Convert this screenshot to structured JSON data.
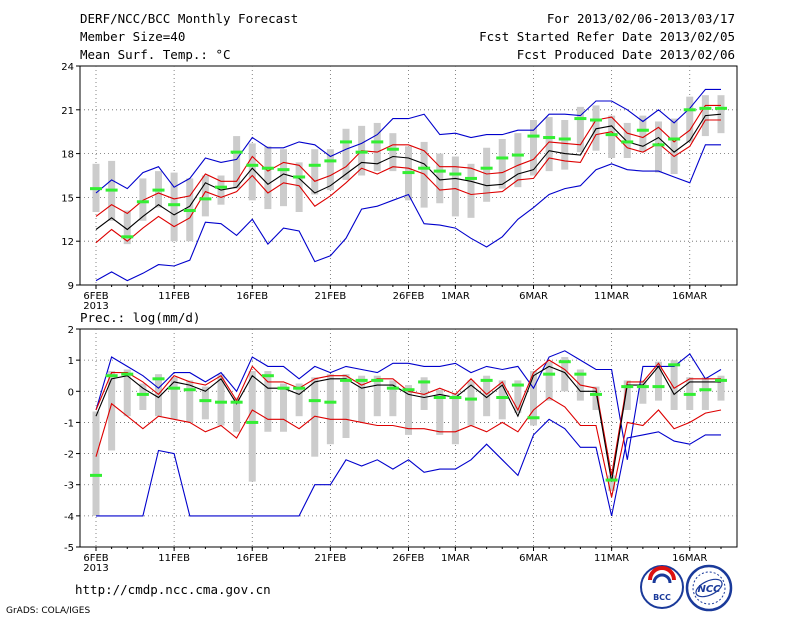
{
  "header": {
    "title": "DERF/NCC/BCC Monthly Forecast",
    "member_size": "Member Size=40",
    "variable": "Mean Surf. Temp.: °C",
    "period": "For 2013/02/06-2013/03/17",
    "start_ref": "Fcst Started Refer Date 2013/02/05",
    "produced": "Fcst Produced Date 2013/02/06"
  },
  "footer": {
    "url": "http://cmdp.ncc.cma.gov.cn",
    "credit": "GrADS: COLA/IGES",
    "logo_bcc": "BCC",
    "logo_ncc": "NCC"
  },
  "colors": {
    "envelope": "#0000cc",
    "spread": "#dd0000",
    "mean": "#000000",
    "median": "#33ee33",
    "box": "#cccccc",
    "grid": "#666666"
  },
  "chart_data": [
    {
      "type": "line",
      "title": "Mean Surf. Temp.: °C",
      "ylim": [
        9,
        24
      ],
      "yticks": [
        9,
        12,
        15,
        18,
        21,
        24
      ],
      "xlim": [
        0,
        40
      ],
      "xticks": [
        {
          "x": 0,
          "label": "6FEB",
          "sub": "2013"
        },
        {
          "x": 5,
          "label": "11FEB"
        },
        {
          "x": 10,
          "label": "16FEB"
        },
        {
          "x": 15,
          "label": "21FEB"
        },
        {
          "x": 20,
          "label": "26FEB"
        },
        {
          "x": 23,
          "label": "1MAR"
        },
        {
          "x": 28,
          "label": "6MAR"
        },
        {
          "x": 33,
          "label": "11MAR"
        },
        {
          "x": 38,
          "label": "16MAR"
        }
      ],
      "grid": true,
      "series": [
        {
          "name": "max",
          "values": [
            15.3,
            16.2,
            15.6,
            16.7,
            17.1,
            15.7,
            16.3,
            17.7,
            17.4,
            17.6,
            19.1,
            18.4,
            18.4,
            18.8,
            18.6,
            17.8,
            18.3,
            18.7,
            19.3,
            20.4,
            20.4,
            20.7,
            19.3,
            19.4,
            19.1,
            19.3,
            19.3,
            19.6,
            19.6,
            20.7,
            20.7,
            20.6,
            21.6,
            21.6,
            21.0,
            20.2,
            21.0,
            20.1,
            21.1,
            22.4,
            22.4
          ]
        },
        {
          "name": "p_hi",
          "values": [
            13.7,
            14.5,
            13.9,
            14.8,
            15.3,
            14.9,
            15.1,
            16.6,
            16.1,
            16.1,
            17.8,
            16.8,
            17.4,
            17.2,
            16.1,
            16.5,
            17.1,
            18.2,
            18.1,
            18.6,
            18.6,
            18.2,
            17.1,
            17.1,
            17.0,
            16.6,
            16.7,
            17.2,
            17.6,
            18.8,
            18.7,
            18.6,
            20.3,
            20.5,
            19.4,
            19.1,
            19.8,
            18.8,
            19.6,
            21.3,
            21.3
          ]
        },
        {
          "name": "mean",
          "values": [
            12.8,
            13.6,
            12.8,
            13.7,
            14.5,
            13.8,
            14.4,
            16.0,
            15.5,
            15.7,
            17.0,
            15.9,
            16.6,
            16.3,
            15.3,
            15.8,
            16.6,
            17.4,
            17.3,
            17.8,
            17.7,
            17.3,
            16.2,
            16.3,
            16.1,
            15.8,
            15.9,
            16.6,
            16.9,
            18.2,
            18.0,
            17.9,
            19.7,
            19.9,
            18.8,
            18.5,
            19.1,
            18.1,
            18.9,
            20.6,
            20.7
          ]
        },
        {
          "name": "p_lo",
          "values": [
            11.9,
            12.8,
            12.0,
            12.9,
            13.7,
            13.0,
            13.6,
            15.4,
            15.0,
            15.4,
            16.5,
            15.3,
            16.0,
            15.8,
            14.4,
            15.1,
            16.0,
            17.0,
            16.6,
            17.1,
            17.0,
            16.6,
            15.5,
            15.6,
            15.2,
            15.3,
            15.4,
            16.2,
            16.3,
            17.7,
            17.5,
            17.4,
            19.3,
            19.5,
            18.4,
            18.1,
            18.7,
            17.8,
            18.5,
            20.3,
            20.3
          ]
        },
        {
          "name": "min",
          "values": [
            9.3,
            9.9,
            9.3,
            9.8,
            10.4,
            10.3,
            10.7,
            13.3,
            13.2,
            12.4,
            13.5,
            11.8,
            12.9,
            12.7,
            10.6,
            11.0,
            12.2,
            14.2,
            14.4,
            14.8,
            15.2,
            13.2,
            13.1,
            12.9,
            12.2,
            11.6,
            12.3,
            13.5,
            14.3,
            15.2,
            15.6,
            15.8,
            16.9,
            17.3,
            16.9,
            16.8,
            16.8,
            16.4,
            16.0,
            18.6,
            18.6
          ]
        }
      ],
      "median": [
        15.6,
        15.5,
        12.3,
        14.7,
        15.5,
        14.5,
        14.1,
        14.9,
        15.7,
        18.1,
        17.2,
        17.0,
        16.9,
        16.4,
        17.2,
        17.5,
        18.8,
        18.1,
        18.8,
        18.3,
        16.7,
        17.0,
        16.8,
        16.6,
        16.3,
        17.0,
        17.7,
        17.9,
        19.2,
        19.1,
        19.0,
        20.4,
        20.3,
        19.3,
        18.8,
        19.6,
        18.6,
        19.0,
        21.0,
        21.1,
        21.1
      ],
      "box_low": [
        14.0,
        13.4,
        11.8,
        13.4,
        14.3,
        12.0,
        12.0,
        13.7,
        14.5,
        15.6,
        14.8,
        14.2,
        14.4,
        14.0,
        15.2,
        15.5,
        16.2,
        16.5,
        16.8,
        16.8,
        14.8,
        14.3,
        14.6,
        13.7,
        13.6,
        14.7,
        15.6,
        15.7,
        16.5,
        16.8,
        16.9,
        18.1,
        18.2,
        17.7,
        17.7,
        18.1,
        16.7,
        16.6,
        18.8,
        19.2,
        19.4
      ],
      "box_high": [
        17.3,
        17.5,
        14.1,
        16.3,
        16.8,
        16.7,
        16.3,
        16.5,
        16.5,
        19.2,
        18.7,
        18.5,
        18.3,
        17.4,
        18.3,
        18.3,
        19.7,
        19.9,
        20.1,
        19.4,
        18.5,
        18.8,
        18.0,
        17.8,
        17.3,
        18.4,
        19.0,
        19.4,
        20.3,
        20.5,
        20.3,
        21.2,
        21.3,
        20.6,
        20.1,
        20.6,
        20.2,
        20.4,
        21.9,
        22.0,
        22.0
      ]
    },
    {
      "type": "line",
      "title": "Prec.: log(mm/d)",
      "ylim": [
        -5,
        2
      ],
      "yticks": [
        -5,
        -4,
        -3,
        -2,
        -1,
        0,
        1,
        2
      ],
      "xlim": [
        0,
        40
      ],
      "xticks": [
        {
          "x": 0,
          "label": "6FEB",
          "sub": "2013"
        },
        {
          "x": 5,
          "label": "11FEB"
        },
        {
          "x": 10,
          "label": "16FEB"
        },
        {
          "x": 15,
          "label": "21FEB"
        },
        {
          "x": 20,
          "label": "26FEB"
        },
        {
          "x": 23,
          "label": "1MAR"
        },
        {
          "x": 28,
          "label": "6MAR"
        },
        {
          "x": 33,
          "label": "11MAR"
        },
        {
          "x": 38,
          "label": "16MAR"
        }
      ],
      "grid": true,
      "series": [
        {
          "name": "max",
          "values": [
            -0.6,
            1.1,
            0.8,
            0.5,
            0.1,
            0.6,
            0.6,
            0.3,
            0.6,
            0.0,
            1.1,
            0.8,
            0.8,
            0.4,
            0.8,
            0.6,
            0.8,
            0.7,
            0.6,
            0.9,
            0.9,
            0.8,
            0.8,
            0.9,
            0.6,
            0.8,
            0.7,
            0.8,
            0.1,
            1.1,
            1.3,
            1.0,
            0.7,
            0.7,
            -2.2,
            0.8,
            0.8,
            0.8,
            1.2,
            0.4,
            0.7
          ]
        },
        {
          "name": "p_hi",
          "values": [
            -0.6,
            0.6,
            0.6,
            0.3,
            -0.1,
            0.5,
            0.3,
            0.2,
            0.5,
            -0.3,
            0.8,
            0.3,
            0.3,
            0.1,
            0.4,
            0.5,
            0.5,
            0.2,
            0.4,
            0.4,
            0.0,
            -0.1,
            0.1,
            -0.1,
            0.4,
            -0.1,
            0.3,
            -0.6,
            0.6,
            1.0,
            0.7,
            0.2,
            0.1,
            -2.7,
            0.3,
            0.3,
            0.9,
            0.1,
            0.4,
            0.4,
            0.4
          ]
        },
        {
          "name": "mean",
          "values": [
            -0.8,
            0.4,
            0.5,
            0.1,
            -0.2,
            0.3,
            0.2,
            0.0,
            0.4,
            -0.4,
            0.5,
            0.1,
            0.1,
            -0.1,
            0.3,
            0.4,
            0.4,
            0.1,
            0.2,
            0.2,
            -0.1,
            -0.2,
            -0.1,
            -0.2,
            0.2,
            -0.2,
            0.2,
            -0.8,
            0.5,
            0.8,
            0.6,
            0.0,
            0.0,
            -2.9,
            0.2,
            0.2,
            0.8,
            -0.1,
            0.3,
            0.3,
            0.3
          ]
        },
        {
          "name": "p_lo",
          "values": [
            -2.1,
            -0.4,
            -0.8,
            -1.2,
            -0.8,
            -0.9,
            -1.0,
            -1.3,
            -1.1,
            -1.5,
            -0.6,
            -0.9,
            -0.9,
            -1.2,
            -0.8,
            -0.9,
            -0.9,
            -1.0,
            -1.1,
            -1.1,
            -1.2,
            -1.2,
            -1.3,
            -1.3,
            -1.1,
            -1.3,
            -1.0,
            -1.3,
            -0.6,
            -0.2,
            -0.5,
            -1.1,
            -1.1,
            -3.4,
            -1.0,
            -1.1,
            -0.6,
            -1.2,
            -1.0,
            -0.7,
            -0.6
          ]
        },
        {
          "name": "min",
          "values": [
            -4.0,
            -4.0,
            -4.0,
            -4.0,
            -1.9,
            -2.0,
            -4.0,
            -4.0,
            -4.0,
            -4.0,
            -4.0,
            -4.0,
            -4.0,
            -4.0,
            -3.0,
            -3.0,
            -2.2,
            -2.4,
            -2.2,
            -2.5,
            -2.2,
            -2.6,
            -2.5,
            -2.5,
            -2.2,
            -1.7,
            -2.2,
            -2.7,
            -1.4,
            -0.9,
            -1.2,
            -1.8,
            -1.8,
            -4.0,
            -1.5,
            -1.4,
            -1.3,
            -1.6,
            -1.7,
            -1.4,
            -1.4
          ]
        }
      ],
      "median": [
        -2.7,
        0.5,
        0.55,
        -0.1,
        0.4,
        0.1,
        0.05,
        -0.3,
        -0.35,
        -0.35,
        -1.0,
        0.5,
        0.1,
        0.1,
        -0.3,
        -0.35,
        0.35,
        0.35,
        0.35,
        0.1,
        0.05,
        0.3,
        -0.2,
        -0.2,
        -0.25,
        0.35,
        -0.2,
        0.2,
        -0.85,
        0.55,
        0.95,
        0.55,
        -0.1,
        -2.85,
        0.15,
        0.15,
        0.15,
        0.85,
        -0.1,
        0.05,
        0.35
      ],
      "box_low": [
        -4.0,
        -1.9,
        -0.8,
        -0.6,
        -0.8,
        -0.9,
        -1.0,
        -0.9,
        -1.1,
        -1.3,
        -2.9,
        -1.3,
        -1.3,
        -0.8,
        -2.1,
        -1.7,
        -1.5,
        -1.0,
        -0.8,
        -0.8,
        -1.4,
        -0.6,
        -1.4,
        -1.7,
        -1.1,
        -0.8,
        -0.9,
        -0.7,
        -1.1,
        -0.3,
        0.0,
        -0.3,
        -0.6,
        -3.2,
        -0.6,
        -0.4,
        -0.3,
        -0.6,
        -0.6,
        -0.6,
        -0.3
      ]
    }
  ]
}
